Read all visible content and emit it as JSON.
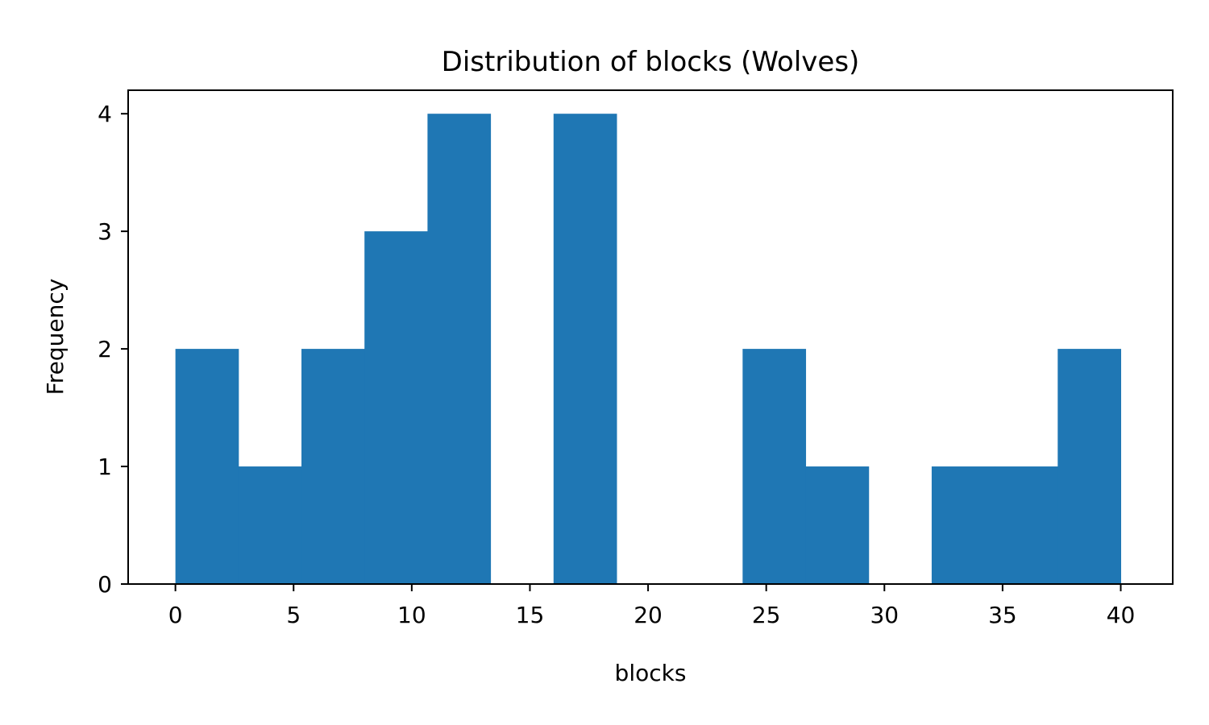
{
  "chart_data": {
    "type": "bar",
    "subtype": "histogram",
    "title": "Distribution of blocks (Wolves)",
    "xlabel": "blocks",
    "ylabel": "Frequency",
    "bin_edges": [
      0,
      2.6667,
      5.3333,
      8,
      10.6667,
      13.3333,
      16,
      18.6667,
      21.3333,
      24,
      26.6667,
      29.3333,
      32,
      34.6667,
      37.3333,
      40
    ],
    "counts": [
      2,
      1,
      2,
      3,
      4,
      0,
      4,
      0,
      0,
      2,
      1,
      0,
      1,
      1,
      2
    ],
    "xlim": [
      -2,
      42.2
    ],
    "ylim": [
      0,
      4.2
    ],
    "xticks": [
      0,
      5,
      10,
      15,
      20,
      25,
      30,
      35,
      40
    ],
    "yticks": [
      0,
      1,
      2,
      3,
      4
    ],
    "bar_color": "#1f77b4",
    "grid": false,
    "legend": "none"
  }
}
